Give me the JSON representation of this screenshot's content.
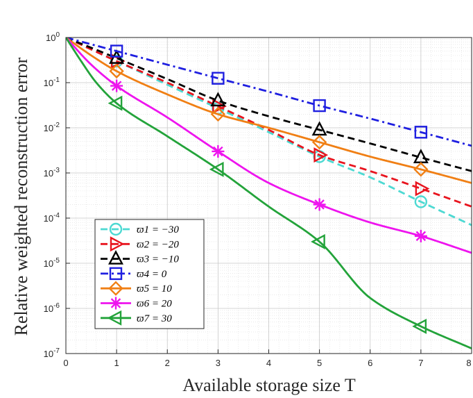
{
  "chart_data": {
    "type": "line",
    "xlabel": "Available storage size T",
    "ylabel": "Relative weighted reconstruction error",
    "xlim": [
      0,
      8
    ],
    "ylim": [
      1e-07,
      1
    ],
    "yscale": "log",
    "grid": true,
    "minor_grid": true,
    "legend_position": "bottom-left",
    "x_ticks": [
      "0",
      "1",
      "2",
      "3",
      "4",
      "5",
      "6",
      "7",
      "8"
    ],
    "y_ticks": [
      {
        "base": "10",
        "exp": "0"
      },
      {
        "base": "10",
        "exp": "-1"
      },
      {
        "base": "10",
        "exp": "-2"
      },
      {
        "base": "10",
        "exp": "-3"
      },
      {
        "base": "10",
        "exp": "-4"
      },
      {
        "base": "10",
        "exp": "-5"
      },
      {
        "base": "10",
        "exp": "-6"
      },
      {
        "base": "10",
        "exp": "-7"
      }
    ],
    "series": [
      {
        "name": "ϖ1 = −30",
        "color": "#4dd9d2",
        "dash": "dashed",
        "marker": "circle",
        "x": [
          0,
          1,
          2,
          3,
          4,
          5,
          6,
          7,
          8
        ],
        "y": [
          1.0,
          0.3,
          0.09,
          0.027,
          0.008,
          0.0023,
          0.0008,
          0.00023,
          7e-05
        ],
        "marker_x": [
          1,
          3,
          5,
          7
        ]
      },
      {
        "name": "ϖ2 = −20",
        "color": "#e8141e",
        "dash": "dashed",
        "marker": "triangle-right",
        "x": [
          0,
          1,
          2,
          3,
          4,
          5,
          6,
          7,
          8
        ],
        "y": [
          1.0,
          0.3,
          0.1,
          0.03,
          0.009,
          0.0025,
          0.0011,
          0.00045,
          0.00018
        ],
        "marker_x": [
          1,
          3,
          5,
          7
        ]
      },
      {
        "name": "ϖ3 = −10",
        "color": "#000000",
        "dash": "dashed",
        "marker": "triangle-up",
        "x": [
          0,
          1,
          2,
          3,
          4,
          5,
          6,
          7,
          8
        ],
        "y": [
          1.0,
          0.35,
          0.12,
          0.04,
          0.018,
          0.009,
          0.0045,
          0.0022,
          0.0011
        ],
        "marker_x": [
          1,
          3,
          5,
          7
        ]
      },
      {
        "name": "ϖ4 = 0",
        "color": "#1f1fe0",
        "dash": "dashdot",
        "marker": "square",
        "x": [
          0,
          1,
          2,
          3,
          4,
          5,
          6,
          7,
          8
        ],
        "y": [
          1.0,
          0.5,
          0.25,
          0.125,
          0.063,
          0.031,
          0.016,
          0.008,
          0.004
        ],
        "marker_x": [
          1,
          3,
          5,
          7
        ]
      },
      {
        "name": "ϖ5 = 10",
        "color": "#f07f14",
        "dash": "solid",
        "marker": "diamond",
        "x": [
          0,
          0.5,
          1,
          2,
          3,
          4,
          5,
          6,
          7,
          8
        ],
        "y": [
          1.0,
          0.4,
          0.18,
          0.055,
          0.02,
          0.01,
          0.0048,
          0.0023,
          0.0012,
          0.0006
        ],
        "marker_x": [
          1,
          3,
          5,
          7
        ]
      },
      {
        "name": "ϖ6 = 20",
        "color": "#ee14ee",
        "dash": "solid",
        "marker": "asterisk",
        "x": [
          0,
          0.5,
          1,
          2,
          3,
          4,
          5,
          6,
          7,
          8
        ],
        "y": [
          1.0,
          0.25,
          0.085,
          0.017,
          0.003,
          0.0006,
          0.0002,
          8e-05,
          4e-05,
          1.7e-05
        ],
        "marker_x": [
          1,
          3,
          5,
          7
        ]
      },
      {
        "name": "ϖ7 = 30",
        "color": "#23a33a",
        "dash": "solid",
        "marker": "triangle-left",
        "x": [
          0,
          0.3,
          0.6,
          1,
          2,
          3,
          4,
          5,
          6,
          7,
          8
        ],
        "y": [
          1.0,
          0.3,
          0.1,
          0.035,
          0.0065,
          0.0012,
          0.00018,
          3e-05,
          1.7e-06,
          4e-07,
          1.3e-07
        ],
        "marker_x": [
          1,
          3,
          5,
          7
        ]
      }
    ]
  }
}
